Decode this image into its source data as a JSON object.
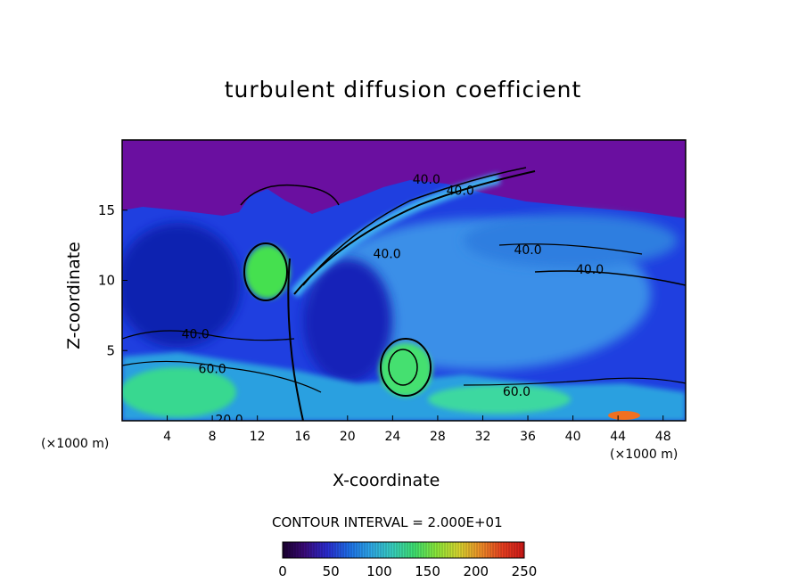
{
  "chart_data": {
    "type": "heatmap",
    "title": "turbulent diffusion coefficient",
    "xlabel": "X-coordinate",
    "ylabel": "Z-coordinate",
    "x_unit_label": "(×1000 m)",
    "x_unit_label_right": "(×1000 m)",
    "xlim": [
      0,
      50
    ],
    "ylim": [
      0,
      20
    ],
    "xticks": [
      4,
      8,
      12,
      16,
      20,
      24,
      28,
      32,
      36,
      40,
      44,
      48
    ],
    "yticks": [
      5,
      10,
      15
    ],
    "contour_interval_text": "CONTOUR INTERVAL = 2.000E+01",
    "contour_labels": [
      {
        "text": "40.0",
        "x": 27.0,
        "y": 17.2
      },
      {
        "text": "40.0",
        "x": 30.0,
        "y": 16.4
      },
      {
        "text": "40.0",
        "x": 36.0,
        "y": 12.2
      },
      {
        "text": "40.0",
        "x": 41.5,
        "y": 10.8
      },
      {
        "text": "40.0",
        "x": 23.5,
        "y": 11.9
      },
      {
        "text": "40.0",
        "x": 6.5,
        "y": 6.2
      },
      {
        "text": "60.0",
        "x": 8.0,
        "y": 3.7
      },
      {
        "text": "60.0",
        "x": 35.0,
        "y": 2.1
      },
      {
        "text": "20.0",
        "x": 9.5,
        "y": 0.1
      }
    ],
    "colorbar": {
      "min": 0,
      "max": 250,
      "ticks": [
        0,
        50,
        100,
        150,
        200,
        250
      ],
      "colors": [
        "#1a0030",
        "#3b0a7a",
        "#2b2bd0",
        "#1e6ee8",
        "#2ea8e8",
        "#38d0c0",
        "#3ee070",
        "#8ce83a",
        "#d8d830",
        "#f09028",
        "#e84020",
        "#d01818"
      ]
    }
  }
}
